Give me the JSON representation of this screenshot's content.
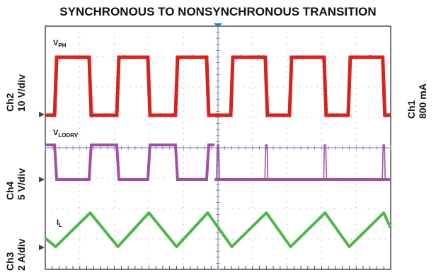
{
  "chart_data": {
    "type": "line",
    "title": "SYNCHRONOUS TO NONSYNCHRONOUS TRANSITION",
    "grid": true,
    "divisions": {
      "x": 10,
      "y": 8
    },
    "left_labels": [
      {
        "channel": "Ch2",
        "scale": "10 V/div"
      },
      {
        "channel": "Ch4",
        "scale": "5 V/div"
      },
      {
        "channel": "Ch3",
        "scale": "2 A/div"
      }
    ],
    "right_labels": [
      {
        "channel": "Ch1",
        "scale": "800 mA"
      }
    ],
    "series": [
      {
        "name": "V",
        "subscript": "PH",
        "color": "#d6231f",
        "description_levels": [
          "low",
          "high"
        ],
        "segments": [
          {
            "edges": [
              0.03,
              0.13,
              0.21,
              0.3,
              0.38,
              0.47
            ],
            "start": "low"
          },
          {
            "edges": [
              0.54,
              0.64,
              0.71,
              0.81,
              0.88,
              0.98
            ],
            "start": "low"
          }
        ]
      },
      {
        "name": "V",
        "subscript": "LODRV",
        "color": "#a24fa6",
        "segments": [
          {
            "edges": [
              0.03,
              0.13,
              0.21,
              0.3,
              0.38,
              0.47
            ],
            "start": "high"
          },
          {
            "spikes": [
              0.5,
              0.64,
              0.81,
              0.98
            ]
          }
        ]
      },
      {
        "name": "I",
        "subscript": "L",
        "color": "#4cb848",
        "triangle": {
          "peaks": [
            0.13,
            0.3,
            0.47,
            0.64,
            0.81,
            0.98
          ],
          "valleys": [
            0.03,
            0.21,
            0.38,
            0.54,
            0.71,
            0.88
          ]
        }
      }
    ]
  }
}
